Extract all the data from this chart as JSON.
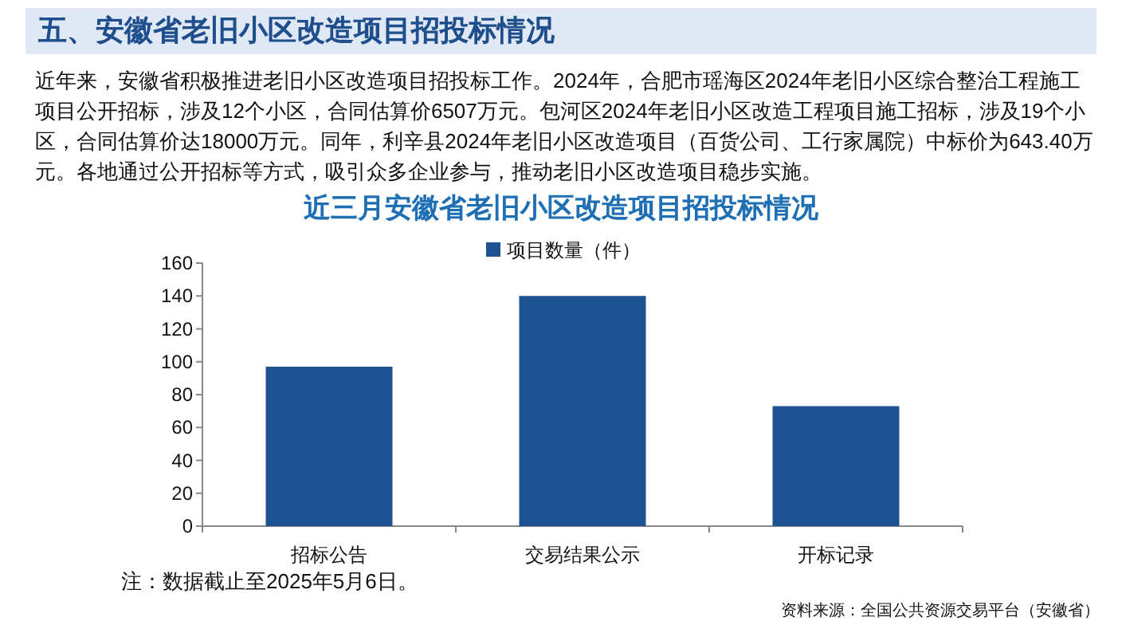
{
  "chart_data": {
    "type": "bar",
    "title": "近三月安徽省老旧小区改造项目招投标情况",
    "categories": [
      "招标公告",
      "交易结果公示",
      "开标记录"
    ],
    "series": [
      {
        "name": "项目数量（件）",
        "color": "#1f5292",
        "values": [
          97,
          140,
          73
        ]
      }
    ],
    "ylim": [
      0,
      160
    ],
    "yticks": [
      0,
      20,
      40,
      60,
      80,
      100,
      120,
      140,
      160
    ],
    "legend": "top",
    "grid": false,
    "annotations": [
      "五、安徽省老旧小区改造项目招投标情况",
      "近年来，安徽省积极推进老旧小区改造项目招投标工作。2024年，合肥市瑶海区2024年老旧小区综合整治工程施工项目公开招标，涉及12个小区，合同估算价6507万元。包河区2024年老旧小区改造工程项目施工招标，涉及19个小区，合同估算价达18000万元。同年，利辛县2024年老旧小区改造项目（百货公司、工行家属院）中标价为643.40万元。各地通过公开招标等方式，吸引众多企业参与，推动老旧小区改造项目稳步实施。",
      "注：数据截止至2025年5月6日。",
      "资料来源：全国公共资源交易平台（安徽省）"
    ]
  }
}
